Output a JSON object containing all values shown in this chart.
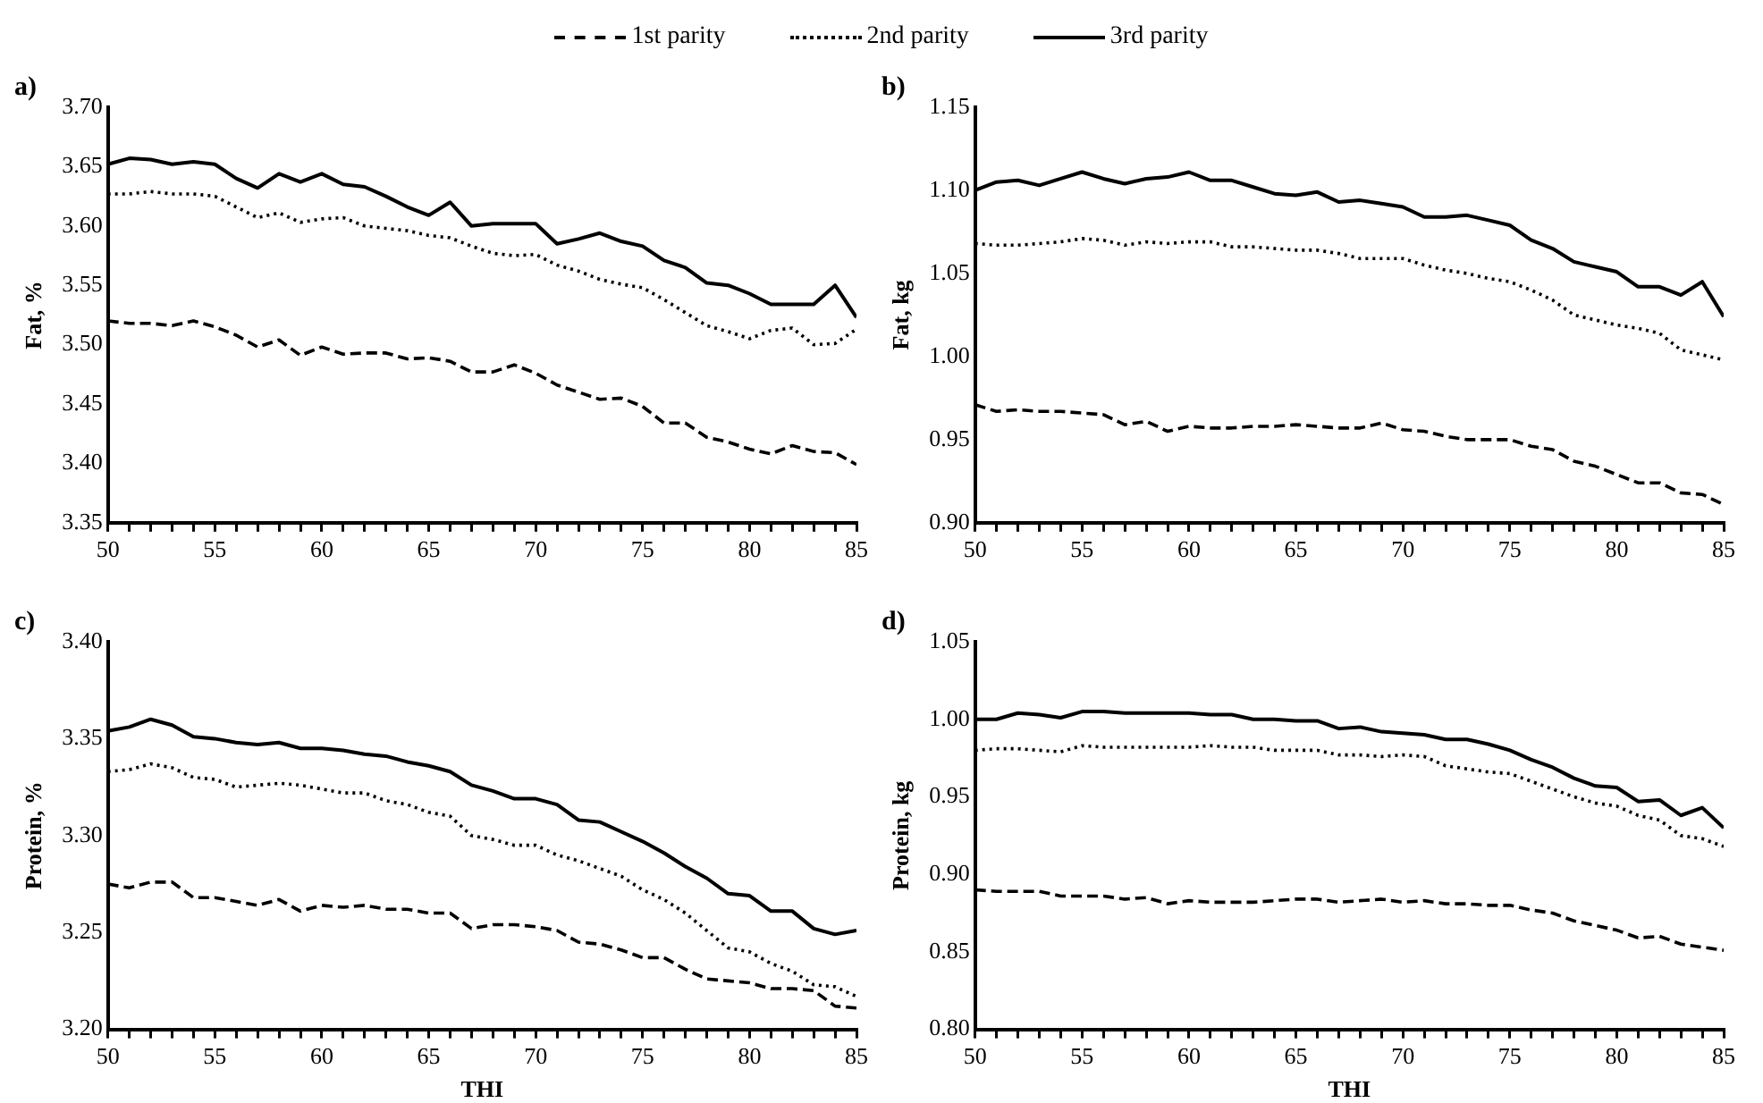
{
  "chart_data": [
    {
      "type": "line",
      "title": "a)",
      "ylabel": "Fat, %",
      "legend": "top",
      "x": [
        50,
        51,
        52,
        53,
        54,
        55,
        56,
        57,
        58,
        59,
        60,
        61,
        62,
        63,
        64,
        65,
        66,
        67,
        68,
        69,
        70,
        71,
        72,
        73,
        74,
        75,
        76,
        77,
        78,
        79,
        80,
        81,
        82,
        83,
        84,
        85
      ],
      "xlim": [
        50,
        85
      ],
      "xticks": [
        50,
        {
          "value": 51,
          "label": null
        },
        {
          "value": 52,
          "label": null
        },
        {
          "value": 53,
          "label": null
        },
        {
          "value": 54,
          "label": null
        },
        55,
        {
          "value": 56,
          "label": null
        },
        {
          "value": 57,
          "label": null
        },
        {
          "value": 58,
          "label": null
        },
        {
          "value": 59,
          "label": null
        },
        60,
        {
          "value": 61,
          "label": null
        },
        {
          "value": 62,
          "label": null
        },
        {
          "value": 63,
          "label": null
        },
        {
          "value": 64,
          "label": null
        },
        65,
        {
          "value": 66,
          "label": null
        },
        {
          "value": 67,
          "label": null
        },
        {
          "value": 68,
          "label": null
        },
        {
          "value": 69,
          "label": null
        },
        70,
        {
          "value": 71,
          "label": null
        },
        {
          "value": 72,
          "label": null
        },
        {
          "value": 73,
          "label": null
        },
        {
          "value": 74,
          "label": null
        },
        75,
        {
          "value": 76,
          "label": null
        },
        {
          "value": 77,
          "label": null
        },
        {
          "value": 78,
          "label": null
        },
        {
          "value": 79,
          "label": null
        },
        80,
        {
          "value": 81,
          "label": null
        },
        {
          "value": 82,
          "label": null
        },
        {
          "value": 83,
          "label": null
        },
        {
          "value": 84,
          "label": null
        },
        85
      ],
      "ylim": [
        3.35,
        3.7
      ],
      "yticks": [
        {
          "value": 3.35,
          "label": "3.35"
        },
        {
          "value": 3.4,
          "label": "3.40"
        },
        {
          "value": 3.45,
          "label": "3.45"
        },
        {
          "value": 3.5,
          "label": "3.50"
        },
        {
          "value": 3.55,
          "label": "3.55"
        },
        {
          "value": 3.6,
          "label": "3.60"
        },
        {
          "value": 3.65,
          "label": "3.65"
        },
        {
          "value": 3.7,
          "label": "3.70"
        }
      ],
      "marker": "none",
      "series": [
        {
          "name": "1st parity",
          "color": "#000000",
          "line_style": "dashed",
          "values": [
            3.52,
            3.518,
            3.518,
            3.516,
            3.52,
            3.515,
            3.508,
            3.498,
            3.504,
            3.491,
            3.498,
            3.492,
            3.493,
            3.493,
            3.488,
            3.489,
            3.486,
            3.477,
            3.477,
            3.483,
            3.476,
            3.466,
            3.46,
            3.454,
            3.455,
            3.448,
            3.434,
            3.434,
            3.422,
            3.418,
            3.412,
            3.408,
            3.415,
            3.41,
            3.409,
            3.399
          ]
        },
        {
          "name": "2nd parity",
          "color": "#000000",
          "line_style": "dotted",
          "values": [
            3.627,
            3.627,
            3.629,
            3.627,
            3.627,
            3.625,
            3.616,
            3.607,
            3.611,
            3.603,
            3.606,
            3.607,
            3.6,
            3.598,
            3.596,
            3.592,
            3.59,
            3.583,
            3.577,
            3.575,
            3.576,
            3.567,
            3.562,
            3.555,
            3.551,
            3.548,
            3.538,
            3.527,
            3.516,
            3.511,
            3.505,
            3.512,
            3.514,
            3.5,
            3.501,
            3.513
          ]
        },
        {
          "name": "3rd parity",
          "color": "#000000",
          "line_style": "solid",
          "values": [
            3.652,
            3.657,
            3.656,
            3.652,
            3.654,
            3.652,
            3.64,
            3.632,
            3.644,
            3.637,
            3.644,
            3.635,
            3.633,
            3.625,
            3.616,
            3.609,
            3.62,
            3.6,
            3.602,
            3.602,
            3.602,
            3.585,
            3.589,
            3.594,
            3.587,
            3.583,
            3.571,
            3.565,
            3.552,
            3.55,
            3.543,
            3.534,
            3.534,
            3.534,
            3.55,
            3.523
          ]
        }
      ]
    },
    {
      "type": "line",
      "title": "b)",
      "ylabel": "Fat, kg",
      "x": [
        50,
        51,
        52,
        53,
        54,
        55,
        56,
        57,
        58,
        59,
        60,
        61,
        62,
        63,
        64,
        65,
        66,
        67,
        68,
        69,
        70,
        71,
        72,
        73,
        74,
        75,
        76,
        77,
        78,
        79,
        80,
        81,
        82,
        83,
        84,
        85
      ],
      "xlim": [
        50,
        85
      ],
      "xticks": [
        50,
        {
          "value": 51,
          "label": null
        },
        {
          "value": 52,
          "label": null
        },
        {
          "value": 53,
          "label": null
        },
        {
          "value": 54,
          "label": null
        },
        55,
        {
          "value": 56,
          "label": null
        },
        {
          "value": 57,
          "label": null
        },
        {
          "value": 58,
          "label": null
        },
        {
          "value": 59,
          "label": null
        },
        60,
        {
          "value": 61,
          "label": null
        },
        {
          "value": 62,
          "label": null
        },
        {
          "value": 63,
          "label": null
        },
        {
          "value": 64,
          "label": null
        },
        65,
        {
          "value": 66,
          "label": null
        },
        {
          "value": 67,
          "label": null
        },
        {
          "value": 68,
          "label": null
        },
        {
          "value": 69,
          "label": null
        },
        70,
        {
          "value": 71,
          "label": null
        },
        {
          "value": 72,
          "label": null
        },
        {
          "value": 73,
          "label": null
        },
        {
          "value": 74,
          "label": null
        },
        75,
        {
          "value": 76,
          "label": null
        },
        {
          "value": 77,
          "label": null
        },
        {
          "value": 78,
          "label": null
        },
        {
          "value": 79,
          "label": null
        },
        80,
        {
          "value": 81,
          "label": null
        },
        {
          "value": 82,
          "label": null
        },
        {
          "value": 83,
          "label": null
        },
        {
          "value": 84,
          "label": null
        },
        85
      ],
      "ylim": [
        0.9,
        1.15
      ],
      "yticks": [
        {
          "value": 0.9,
          "label": "0.90"
        },
        {
          "value": 0.95,
          "label": "0.95"
        },
        {
          "value": 1.0,
          "label": "1.00"
        },
        {
          "value": 1.05,
          "label": "1.05"
        },
        {
          "value": 1.1,
          "label": "1.10"
        },
        {
          "value": 1.15,
          "label": "1.15"
        }
      ],
      "marker": "none",
      "series": [
        {
          "color": "#000000",
          "line_style": "dashed",
          "values": [
            0.971,
            0.967,
            0.968,
            0.967,
            0.967,
            0.966,
            0.965,
            0.959,
            0.961,
            0.955,
            0.958,
            0.957,
            0.957,
            0.958,
            0.958,
            0.959,
            0.958,
            0.957,
            0.957,
            0.96,
            0.956,
            0.955,
            0.952,
            0.95,
            0.95,
            0.95,
            0.946,
            0.944,
            0.937,
            0.934,
            0.929,
            0.924,
            0.924,
            0.918,
            0.917,
            0.911
          ]
        },
        {
          "color": "#000000",
          "line_style": "dotted",
          "values": [
            1.068,
            1.067,
            1.067,
            1.068,
            1.069,
            1.071,
            1.07,
            1.067,
            1.069,
            1.068,
            1.069,
            1.069,
            1.066,
            1.066,
            1.065,
            1.064,
            1.064,
            1.062,
            1.059,
            1.059,
            1.059,
            1.055,
            1.052,
            1.05,
            1.047,
            1.045,
            1.04,
            1.034,
            1.025,
            1.022,
            1.019,
            1.017,
            1.014,
            1.004,
            1.001,
            0.998
          ]
        },
        {
          "color": "#000000",
          "line_style": "solid",
          "values": [
            1.1,
            1.105,
            1.106,
            1.103,
            1.107,
            1.111,
            1.107,
            1.104,
            1.107,
            1.108,
            1.111,
            1.106,
            1.106,
            1.102,
            1.098,
            1.097,
            1.099,
            1.093,
            1.094,
            1.092,
            1.09,
            1.084,
            1.084,
            1.085,
            1.082,
            1.079,
            1.07,
            1.065,
            1.057,
            1.054,
            1.051,
            1.042,
            1.042,
            1.037,
            1.045,
            1.024
          ]
        }
      ]
    },
    {
      "type": "line",
      "title": "c)",
      "xlabel": "THI",
      "ylabel": "Protein, %",
      "x": [
        50,
        51,
        52,
        53,
        54,
        55,
        56,
        57,
        58,
        59,
        60,
        61,
        62,
        63,
        64,
        65,
        66,
        67,
        68,
        69,
        70,
        71,
        72,
        73,
        74,
        75,
        76,
        77,
        78,
        79,
        80,
        81,
        82,
        83,
        84,
        85
      ],
      "xlim": [
        50,
        85
      ],
      "xticks": [
        50,
        {
          "value": 51,
          "label": null
        },
        {
          "value": 52,
          "label": null
        },
        {
          "value": 53,
          "label": null
        },
        {
          "value": 54,
          "label": null
        },
        55,
        {
          "value": 56,
          "label": null
        },
        {
          "value": 57,
          "label": null
        },
        {
          "value": 58,
          "label": null
        },
        {
          "value": 59,
          "label": null
        },
        60,
        {
          "value": 61,
          "label": null
        },
        {
          "value": 62,
          "label": null
        },
        {
          "value": 63,
          "label": null
        },
        {
          "value": 64,
          "label": null
        },
        65,
        {
          "value": 66,
          "label": null
        },
        {
          "value": 67,
          "label": null
        },
        {
          "value": 68,
          "label": null
        },
        {
          "value": 69,
          "label": null
        },
        70,
        {
          "value": 71,
          "label": null
        },
        {
          "value": 72,
          "label": null
        },
        {
          "value": 73,
          "label": null
        },
        {
          "value": 74,
          "label": null
        },
        75,
        {
          "value": 76,
          "label": null
        },
        {
          "value": 77,
          "label": null
        },
        {
          "value": 78,
          "label": null
        },
        {
          "value": 79,
          "label": null
        },
        80,
        {
          "value": 81,
          "label": null
        },
        {
          "value": 82,
          "label": null
        },
        {
          "value": 83,
          "label": null
        },
        {
          "value": 84,
          "label": null
        },
        85
      ],
      "ylim": [
        3.2,
        3.4
      ],
      "yticks": [
        {
          "value": 3.2,
          "label": "3.20"
        },
        {
          "value": 3.25,
          "label": "3.25"
        },
        {
          "value": 3.3,
          "label": "3.30"
        },
        {
          "value": 3.35,
          "label": "3.35"
        },
        {
          "value": 3.4,
          "label": "3.40"
        }
      ],
      "marker": "none",
      "series": [
        {
          "color": "#000000",
          "line_style": "dashed",
          "values": [
            3.275,
            3.273,
            3.276,
            3.276,
            3.268,
            3.268,
            3.266,
            3.264,
            3.267,
            3.261,
            3.264,
            3.263,
            3.264,
            3.262,
            3.262,
            3.26,
            3.26,
            3.252,
            3.254,
            3.254,
            3.253,
            3.251,
            3.245,
            3.244,
            3.241,
            3.237,
            3.237,
            3.231,
            3.226,
            3.225,
            3.224,
            3.221,
            3.221,
            3.22,
            3.212,
            3.211
          ]
        },
        {
          "color": "#000000",
          "line_style": "dotted",
          "values": [
            3.333,
            3.334,
            3.337,
            3.335,
            3.33,
            3.329,
            3.325,
            3.326,
            3.327,
            3.326,
            3.324,
            3.322,
            3.322,
            3.318,
            3.316,
            3.312,
            3.31,
            3.3,
            3.298,
            3.295,
            3.295,
            3.29,
            3.287,
            3.283,
            3.279,
            3.272,
            3.267,
            3.26,
            3.251,
            3.242,
            3.24,
            3.234,
            3.23,
            3.223,
            3.222,
            3.217
          ]
        },
        {
          "color": "#000000",
          "line_style": "solid",
          "values": [
            3.354,
            3.356,
            3.36,
            3.357,
            3.351,
            3.35,
            3.348,
            3.347,
            3.348,
            3.345,
            3.345,
            3.344,
            3.342,
            3.341,
            3.338,
            3.336,
            3.333,
            3.326,
            3.323,
            3.319,
            3.319,
            3.316,
            3.308,
            3.307,
            3.302,
            3.297,
            3.291,
            3.284,
            3.278,
            3.27,
            3.269,
            3.261,
            3.261,
            3.252,
            3.249,
            3.251
          ]
        }
      ]
    },
    {
      "type": "line",
      "title": "d)",
      "xlabel": "THI",
      "ylabel": "Protein, kg",
      "x": [
        50,
        51,
        52,
        53,
        54,
        55,
        56,
        57,
        58,
        59,
        60,
        61,
        62,
        63,
        64,
        65,
        66,
        67,
        68,
        69,
        70,
        71,
        72,
        73,
        74,
        75,
        76,
        77,
        78,
        79,
        80,
        81,
        82,
        83,
        84,
        85
      ],
      "xlim": [
        50,
        85
      ],
      "xticks": [
        50,
        {
          "value": 51,
          "label": null
        },
        {
          "value": 52,
          "label": null
        },
        {
          "value": 53,
          "label": null
        },
        {
          "value": 54,
          "label": null
        },
        55,
        {
          "value": 56,
          "label": null
        },
        {
          "value": 57,
          "label": null
        },
        {
          "value": 58,
          "label": null
        },
        {
          "value": 59,
          "label": null
        },
        60,
        {
          "value": 61,
          "label": null
        },
        {
          "value": 62,
          "label": null
        },
        {
          "value": 63,
          "label": null
        },
        {
          "value": 64,
          "label": null
        },
        65,
        {
          "value": 66,
          "label": null
        },
        {
          "value": 67,
          "label": null
        },
        {
          "value": 68,
          "label": null
        },
        {
          "value": 69,
          "label": null
        },
        70,
        {
          "value": 71,
          "label": null
        },
        {
          "value": 72,
          "label": null
        },
        {
          "value": 73,
          "label": null
        },
        {
          "value": 74,
          "label": null
        },
        75,
        {
          "value": 76,
          "label": null
        },
        {
          "value": 77,
          "label": null
        },
        {
          "value": 78,
          "label": null
        },
        {
          "value": 79,
          "label": null
        },
        80,
        {
          "value": 81,
          "label": null
        },
        {
          "value": 82,
          "label": null
        },
        {
          "value": 83,
          "label": null
        },
        {
          "value": 84,
          "label": null
        },
        85
      ],
      "ylim": [
        0.8,
        1.05
      ],
      "yticks": [
        {
          "value": 0.8,
          "label": "0.80"
        },
        {
          "value": 0.85,
          "label": "0.85"
        },
        {
          "value": 0.9,
          "label": "0.90"
        },
        {
          "value": 0.95,
          "label": "0.95"
        },
        {
          "value": 1.0,
          "label": "1.00"
        },
        {
          "value": 1.05,
          "label": "1.05"
        }
      ],
      "marker": "none",
      "series": [
        {
          "color": "#000000",
          "line_style": "dashed",
          "values": [
            0.89,
            0.889,
            0.889,
            0.889,
            0.886,
            0.886,
            0.886,
            0.884,
            0.885,
            0.881,
            0.883,
            0.882,
            0.882,
            0.882,
            0.883,
            0.884,
            0.884,
            0.882,
            0.883,
            0.884,
            0.882,
            0.883,
            0.881,
            0.881,
            0.88,
            0.88,
            0.877,
            0.875,
            0.87,
            0.867,
            0.864,
            0.859,
            0.86,
            0.855,
            0.853,
            0.851
          ]
        },
        {
          "color": "#000000",
          "line_style": "dotted",
          "values": [
            0.98,
            0.981,
            0.981,
            0.98,
            0.979,
            0.983,
            0.982,
            0.982,
            0.982,
            0.982,
            0.982,
            0.983,
            0.982,
            0.982,
            0.98,
            0.98,
            0.98,
            0.977,
            0.977,
            0.976,
            0.977,
            0.976,
            0.97,
            0.968,
            0.966,
            0.965,
            0.96,
            0.955,
            0.95,
            0.946,
            0.944,
            0.938,
            0.935,
            0.925,
            0.923,
            0.918
          ]
        },
        {
          "color": "#000000",
          "line_style": "solid",
          "values": [
            1.0,
            1.0,
            1.004,
            1.003,
            1.001,
            1.005,
            1.005,
            1.004,
            1.004,
            1.004,
            1.004,
            1.003,
            1.003,
            1.0,
            1.0,
            0.999,
            0.999,
            0.994,
            0.995,
            0.992,
            0.991,
            0.99,
            0.987,
            0.987,
            0.984,
            0.98,
            0.974,
            0.969,
            0.962,
            0.957,
            0.956,
            0.947,
            0.948,
            0.938,
            0.943,
            0.93
          ]
        }
      ]
    }
  ]
}
